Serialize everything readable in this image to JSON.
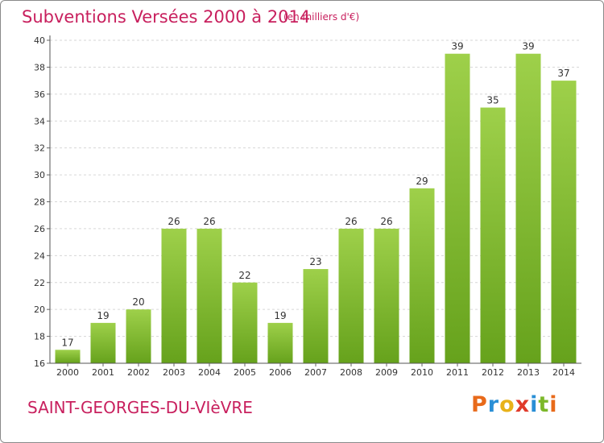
{
  "chart_data": {
    "type": "bar",
    "title": "Subventions Versées 2000 à 2014",
    "subtitle": "(en milliers d'€)",
    "categories": [
      "2000",
      "2001",
      "2002",
      "2003",
      "2004",
      "2005",
      "2006",
      "2007",
      "2008",
      "2009",
      "2010",
      "2011",
      "2012",
      "2013",
      "2014"
    ],
    "values": [
      17,
      19,
      20,
      26,
      26,
      22,
      19,
      23,
      26,
      26,
      29,
      39,
      35,
      39,
      37
    ],
    "ylim": [
      16,
      40
    ],
    "yticks": [
      16,
      18,
      20,
      22,
      24,
      26,
      28,
      30,
      32,
      34,
      36,
      38,
      40
    ],
    "grid": true,
    "bar_color": "#7cb82a"
  },
  "commune": "SAINT-GEORGES-DU-VIèVRE",
  "logo": {
    "text": "Proxiti",
    "letters": [
      {
        "ch": "P",
        "color": "#e86a1a"
      },
      {
        "ch": "r",
        "color": "#2a8fd6"
      },
      {
        "ch": "o",
        "color": "#e8b21a"
      },
      {
        "ch": "x",
        "color": "#e03a2a"
      },
      {
        "ch": "i",
        "color": "#2a8fd6"
      },
      {
        "ch": "t",
        "color": "#7cb82a"
      },
      {
        "ch": "i",
        "color": "#e86a1a"
      }
    ]
  }
}
